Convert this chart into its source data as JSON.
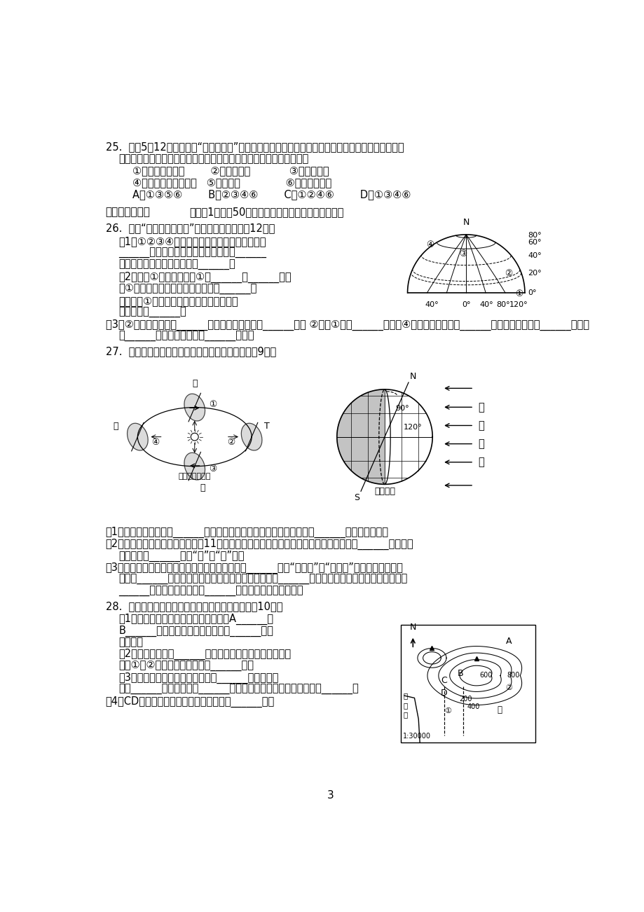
{
  "page_number": "3",
  "background_color": "#ffffff",
  "text_color": "#000000",
  "q25_line1": "25.  每年5月12日为我国的“防灾减灾日”，这有利于普及推广全民防灾减灾知识和提高避灾自撤能力，",
  "q25_line2": "最大限度地减轻灾害的损失。当地震发生时，你认为可取的应急措施有",
  "q25_opt1": "①誺在课桌旁蹲下        ②靠墙角蹲下            ③乘电梯逃生",
  "q25_opt2": "④一楼的跑到空旷场地   ⑤跳楼逃生              ⑥誺到洗手间里",
  "q25_choices": "A．①③⑤⑥        B．②③④⑥        C．①②④⑥        D．①③④⑥",
  "section2": "二、综合分析题",
  "section2_sub": "（每空1分，共50分。请在答题卷的相应位置作答。）",
  "q26_intro": "26.  读图“某半球经纬网图”，完成下面小题：（12分）",
  "q26_1a": "（1）①②③④中，位于南北半球分界线上的点是",
  "q26_1b": "______；一年有一次阳光直射现象的是______",
  "q26_1c": "点；一天中最早看见日出的是______。",
  "q26_2a": "（2）写出①点的经纬度：①（______，______）。",
  "q26_2b": "与①点所在经线构成经线圈的经线是______，",
  "q26_2c": "一个人从①点出发向北行馿，不改变方向，",
  "q26_2d": "最终可到达______。",
  "q26_3": "（3）②点位于五带中的______带，高中低纬度中的______纬度 ②点在①点的______方向。④点位于东西半球的______半球，南北半球的______半球。",
  "q27_intro": "27.  结合地球公转、自转示意图，回答下列问题：（9分）",
  "q27_1": "（1）地球公转的方向为______。一年中，太阳光线的直射点有规律地在______之间来回移动。",
  "q27_2": "（2）我们现在正在进行阶段练习（11月份），此时地球公转位置处于地球公转示意图中的______，黄山市",
  "q27_2b": "的白昼将变______（填“长”或“短”）。",
  "q27_3a": "（3）根据地球自转示意图判断，我国此时的节气是______（填“夏至日”或“冬至日”），所示太阳直射",
  "q27_3b": "点位于______（重要纬线的名称），此时北极圈内出现______现象。这一天北京的昼夜长短情况是",
  "q27_3c": "______，是天安门前升国旗______（最早、最晚）的一天。",
  "q28_intro": "28.  图示意某地等高线地形分布，读图回答问题：（10分）",
  "q28_1a": "（1）写出图中字母所在地形部位名称：A______，",
  "q28_1b": "B______。最适合开展攀岩活动的是______（填",
  "q28_1c": "字母）。",
  "q28_2a": "（2）在地图上，把______相同的各点连接成线，就是等高",
  "q28_2b": "线。①、②两地间的相对高度是______米。",
  "q28_3a": "（3）地图三要素是比例尺、方向和______。本图采用",
  "q28_3b": "的是______比例尺，根据______判断方向，图中小青河流向大致是______。",
  "q28_4": "（4）CD两虚线处有可能发育形成小河的是______处。"
}
